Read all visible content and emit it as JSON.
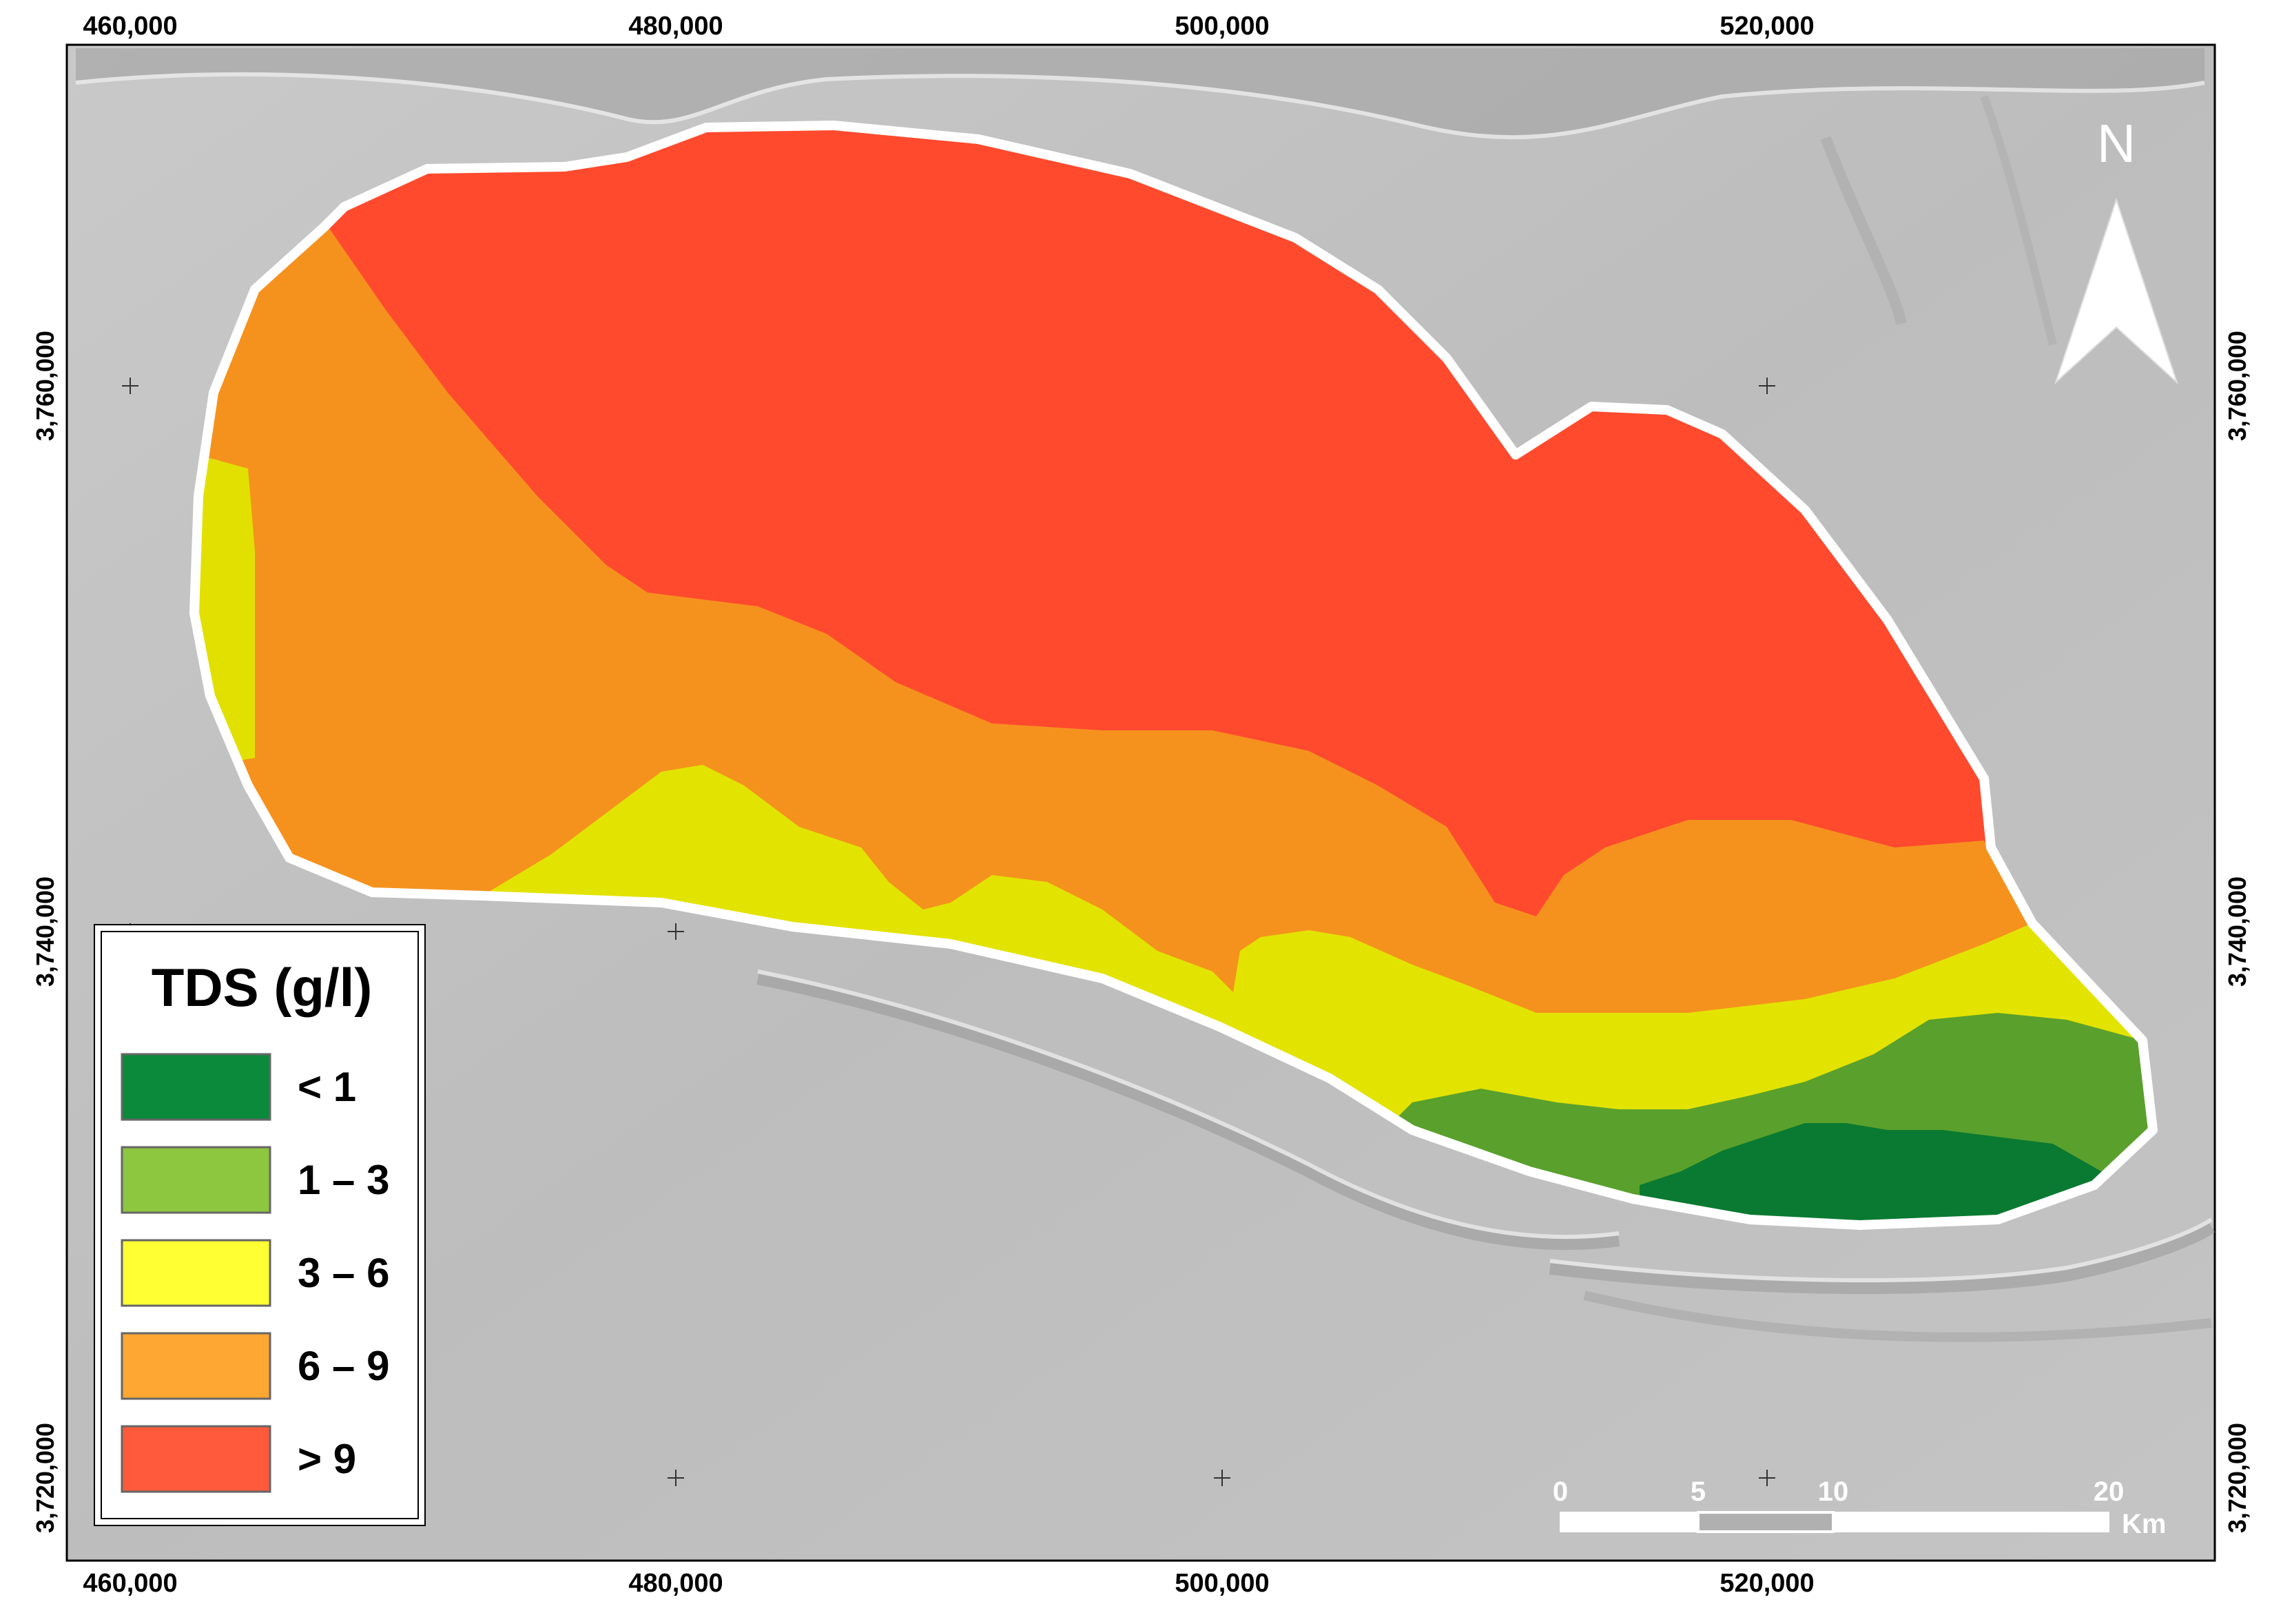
{
  "map": {
    "x_ticks": [
      "460,000",
      "480,000",
      "500,000",
      "520,000"
    ],
    "y_ticks": [
      "3,760,000",
      "3,740,000",
      "3,720,000"
    ]
  },
  "north_arrow": {
    "label": "N"
  },
  "legend": {
    "title": "TDS (g/l)",
    "classes": [
      {
        "label": "< 1",
        "color": "#0a8a3a"
      },
      {
        "label": "1 – 3",
        "color": "#8dc63f"
      },
      {
        "label": "3 – 6",
        "color": "#ffff33"
      },
      {
        "label": "6 – 9",
        "color": "#ffa733"
      },
      {
        "label": "> 9",
        "color": "#ff5a3c"
      }
    ]
  },
  "scale_bar": {
    "labels": [
      "0",
      "5",
      "10",
      "20"
    ],
    "unit": "Km"
  }
}
